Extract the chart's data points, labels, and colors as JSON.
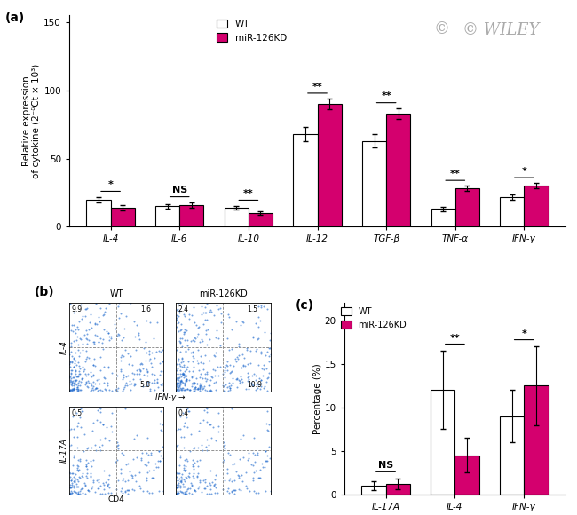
{
  "panel_a": {
    "categories": [
      "IL-4",
      "IL-6",
      "IL-10",
      "IL-12",
      "TGF-β",
      "TNF-α",
      "IFN-γ"
    ],
    "wt_values": [
      20,
      15,
      14,
      68,
      63,
      13,
      22
    ],
    "wt_errors": [
      2,
      1.5,
      1.5,
      5,
      5,
      1.5,
      2
    ],
    "kd_values": [
      14,
      16,
      10,
      90,
      83,
      28,
      30
    ],
    "kd_errors": [
      2,
      2,
      1.5,
      4,
      4,
      2,
      2
    ],
    "sig_labels": [
      "*",
      "NS",
      "**",
      "**",
      "**",
      "**",
      "*"
    ],
    "ylabel": "Relative expression\nof cytokine (2⁻ᵟCt × 10³)",
    "ylim": [
      0,
      155
    ],
    "yticks": [
      0,
      50,
      100,
      150
    ]
  },
  "panel_c": {
    "categories": [
      "IL-17A",
      "IL-4",
      "IFN-γ"
    ],
    "wt_values": [
      1.0,
      12.0,
      9.0
    ],
    "wt_errors": [
      0.5,
      4.5,
      3.0
    ],
    "kd_values": [
      1.2,
      4.5,
      12.5
    ],
    "kd_errors": [
      0.6,
      2.0,
      4.5
    ],
    "sig_labels": [
      "NS",
      "**",
      "*"
    ],
    "ylabel": "Percentage (%)",
    "ylim": [
      0,
      22
    ],
    "yticks": [
      0,
      5,
      10,
      15,
      20
    ]
  },
  "colors": {
    "wt": "#ffffff",
    "kd": "#d4006e",
    "edge": "#000000"
  },
  "panel_b": {
    "wt_top_left": "9.9",
    "wt_top_right": "1.6",
    "wt_bottom_right": "5.8",
    "kd_top_left": "2.4",
    "kd_top_right": "1.5",
    "kd_bottom_right": "10.9",
    "wt_bot_top_left": "0.5",
    "kd_bot_top_left": "0.4"
  },
  "wiley_text": "© WILEY",
  "panel_labels": [
    "(a)",
    "(b)",
    "(c)"
  ],
  "fig_bgcolor": "#ffffff"
}
